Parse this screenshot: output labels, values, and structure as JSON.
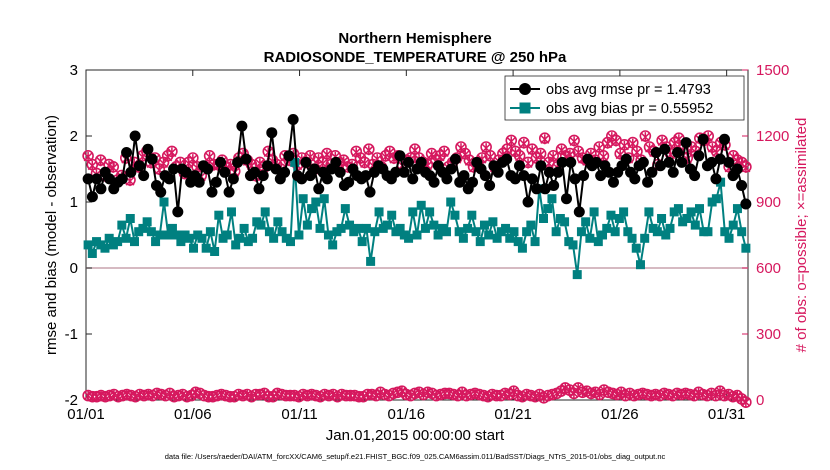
{
  "chart_data": {
    "type": "line",
    "title": "Northern Hemisphere",
    "subtitle": "RADIOSONDE_TEMPERATURE @ 250 hPa",
    "xlabel": "Jan.01,2015 00:00:00 start",
    "ylabel": "rmse and bias (model - observation)",
    "y2label": "# of obs: o=possible; ×=assimilated",
    "footer": "data file: /Users/raeder/DAI/ATM_forcXX/CAM6_setup/f.e21.FHIST_BGC.f09_025.CAM6assim.011/BadSST/Diags_NTrS_2015-01/obs_diag_output.nc",
    "xlim": [
      0,
      31
    ],
    "ylim": [
      -2,
      3
    ],
    "y2lim": [
      0,
      1500
    ],
    "x_ticks": [
      0,
      5,
      10,
      15,
      20,
      25,
      30
    ],
    "x_tick_labels": [
      "01/01",
      "01/06",
      "01/11",
      "01/16",
      "01/21",
      "01/26",
      "01/31"
    ],
    "y_ticks": [
      -2,
      -1,
      0,
      1,
      2,
      3
    ],
    "y_tick_labels": [
      "-2",
      "-1",
      "0",
      "1",
      "2",
      "3"
    ],
    "y2_ticks": [
      0,
      300,
      600,
      900,
      1200,
      1500
    ],
    "y2_tick_labels": [
      "0",
      "300",
      "600",
      "900",
      "1200",
      "1500"
    ],
    "colors": {
      "rmse": "#000000",
      "bias": "#008080",
      "obs": "#d6185e",
      "zero": "#c8a3ad"
    },
    "legend": {
      "position": "top-right",
      "entries": [
        "obs avg rmse pr = 1.4793",
        "obs avg bias pr = 0.55952"
      ]
    },
    "series": [
      {
        "name": "obs avg rmse pr = 1.4793",
        "axis": "left",
        "values": [
          1.35,
          1.08,
          1.35,
          1.2,
          1.45,
          1.35,
          1.2,
          1.3,
          1.35,
          1.75,
          1.45,
          2.0,
          1.55,
          1.4,
          1.8,
          1.65,
          1.25,
          1.15,
          1.4,
          1.35,
          1.5,
          0.85,
          1.5,
          1.45,
          1.3,
          1.4,
          1.3,
          1.55,
          1.5,
          1.15,
          1.3,
          1.6,
          1.45,
          1.15,
          1.35,
          1.6,
          2.15,
          1.65,
          1.4,
          1.45,
          1.2,
          1.4,
          1.55,
          2.05,
          1.5,
          1.35,
          1.45,
          1.7,
          2.25,
          1.4,
          1.35,
          1.6,
          1.4,
          1.5,
          1.2,
          1.45,
          1.35,
          1.5,
          1.6,
          1.45,
          1.25,
          1.3,
          1.5,
          1.4,
          1.35,
          1.4,
          1.15,
          1.45,
          1.55,
          1.5,
          1.4,
          1.35,
          1.45,
          1.7,
          1.45,
          1.6,
          1.35,
          1.5,
          1.6,
          1.45,
          1.4,
          1.3,
          1.55,
          1.45,
          1.35,
          1.5,
          1.65,
          1.3,
          1.4,
          1.2,
          1.3,
          1.6,
          1.5,
          1.4,
          1.25,
          1.55,
          1.45,
          1.6,
          1.65,
          1.4,
          1.35,
          1.55,
          1.4,
          1.0,
          1.35,
          1.2,
          1.55,
          1.2,
          1.45,
          1.25,
          1.45,
          1.6,
          1.05,
          1.6,
          1.35,
          0.85,
          1.4,
          1.65,
          1.55,
          1.6,
          1.4,
          1.55,
          1.45,
          1.3,
          1.45,
          1.55,
          1.65,
          1.45,
          1.35,
          1.55,
          1.6,
          1.3,
          1.45,
          1.75,
          1.55,
          1.8,
          1.6,
          1.45,
          1.75,
          1.6,
          1.9,
          1.5,
          1.4,
          1.7,
          1.95,
          1.55,
          1.6,
          1.35,
          1.65,
          1.95,
          1.6,
          1.4,
          1.5,
          1.25,
          0.97
        ]
      },
      {
        "name": "obs avg bias pr = 0.55952",
        "axis": "left",
        "values": [
          0.35,
          0.22,
          0.4,
          0.35,
          0.3,
          0.45,
          0.35,
          0.4,
          0.65,
          0.45,
          0.75,
          0.4,
          0.55,
          0.6,
          0.7,
          0.55,
          0.4,
          0.5,
          1.0,
          0.5,
          0.6,
          0.5,
          0.4,
          0.5,
          0.45,
          0.3,
          0.5,
          0.45,
          0.3,
          0.55,
          0.25,
          0.8,
          0.45,
          0.5,
          0.85,
          0.35,
          0.45,
          0.6,
          0.4,
          0.45,
          0.7,
          0.65,
          0.85,
          0.55,
          0.45,
          0.7,
          0.55,
          0.45,
          0.4,
          1.6,
          0.5,
          1.05,
          0.65,
          0.9,
          1.0,
          0.6,
          1.05,
          0.5,
          0.35,
          0.55,
          0.6,
          0.9,
          0.65,
          0.55,
          0.6,
          0.4,
          0.6,
          0.1,
          0.55,
          0.85,
          0.6,
          0.65,
          0.8,
          0.55,
          0.6,
          0.5,
          0.45,
          0.85,
          0.5,
          0.95,
          0.6,
          0.85,
          0.65,
          0.5,
          0.6,
          0.55,
          1.0,
          0.8,
          0.55,
          0.45,
          0.6,
          0.8,
          0.55,
          0.4,
          0.65,
          0.5,
          0.7,
          0.45,
          0.55,
          0.6,
          0.45,
          0.55,
          0.4,
          0.3,
          0.55,
          0.65,
          0.4,
          1.2,
          0.75,
          0.9,
          1.05,
          0.55,
          0.75,
          0.7,
          0.4,
          0.35,
          -0.1,
          0.55,
          0.7,
          0.45,
          0.85,
          0.4,
          0.5,
          0.6,
          0.8,
          0.55,
          0.75,
          0.85,
          0.55,
          0.45,
          0.3,
          0.05,
          0.45,
          0.85,
          0.6,
          0.55,
          0.75,
          0.5,
          0.6,
          0.85,
          0.9,
          0.7,
          0.75,
          0.85,
          0.65,
          0.9,
          0.55,
          0.55,
          1.0,
          1.05,
          1.3,
          0.55,
          0.45,
          0.65,
          0.9,
          0.55,
          0.3
        ]
      },
      {
        "name": "# of obs possible",
        "axis": "right",
        "marker": "o",
        "values": [
          1110,
          1070,
          1030,
          1090,
          1020,
          1070,
          1060,
          1000,
          1020,
          1100,
          1000,
          1080,
          1060,
          1110,
          1130,
          1080,
          1100,
          1050,
          1080,
          1110,
          1130,
          1060,
          1080,
          1030,
          1080,
          1100,
          1060,
          1020,
          1060,
          1110,
          1070,
          1070,
          1090,
          1060,
          1070,
          1040,
          1100,
          1120,
          1090,
          1070,
          1020,
          1080,
          1060,
          1130,
          1090,
          1070,
          1050,
          1110,
          1090,
          1120,
          1070,
          1100,
          1080,
          1110,
          1050,
          1100,
          1080,
          1120,
          1070,
          1110,
          1080,
          1090,
          1060,
          1070,
          1130,
          1100,
          1080,
          1140,
          1070,
          1100,
          1060,
          1110,
          1130,
          1100,
          1110,
          1070,
          1090,
          1100,
          1140,
          1100,
          1080,
          1070,
          1120,
          1090,
          1110,
          1130,
          1060,
          1080,
          1100,
          1150,
          1120,
          1090,
          1060,
          1080,
          1100,
          1150,
          1110,
          1060,
          1090,
          1120,
          1140,
          1180,
          1130,
          1110,
          1170,
          1080,
          1140,
          1100,
          1120,
          1190,
          1080,
          1110,
          1060,
          1140,
          1110,
          1120,
          1180,
          1130,
          1100,
          1090,
          1120,
          1090,
          1150,
          1110,
          1170,
          1200,
          1180,
          1120,
          1160,
          1100,
          1170,
          1130,
          1090,
          1200,
          1150,
          1130,
          1070,
          1180,
          1150,
          1120,
          1170,
          1190,
          1140,
          1100,
          1150,
          1130,
          1190,
          1180,
          1200,
          1150,
          1130,
          1170,
          1160,
          1060,
          1110,
          1090,
          1080,
          1060
        ]
      },
      {
        "name": "# of obs assimilated",
        "axis": "right",
        "marker": "x",
        "values": [
          1105,
          1065,
          1025,
          1085,
          1015,
          1065,
          1055,
          995,
          1015,
          1095,
          995,
          1075,
          1055,
          1105,
          1125,
          1075,
          1095,
          1045,
          1075,
          1105,
          1125,
          1055,
          1075,
          1025,
          1075,
          1095,
          1055,
          1015,
          1055,
          1105,
          1065,
          1065,
          1085,
          1055,
          1065,
          1035,
          1095,
          1115,
          1085,
          1065,
          1015,
          1075,
          1055,
          1125,
          1085,
          1065,
          1045,
          1105,
          1085,
          1115,
          1065,
          1095,
          1075,
          1105,
          1045,
          1095,
          1075,
          1115,
          1065,
          1105,
          1075,
          1085,
          1055,
          1065,
          1125,
          1095,
          1075,
          1135,
          1065,
          1095,
          1055,
          1105,
          1125,
          1095,
          1105,
          1065,
          1085,
          1095,
          1135,
          1095,
          1075,
          1065,
          1115,
          1085,
          1105,
          1125,
          1055,
          1075,
          1095,
          1145,
          1115,
          1085,
          1055,
          1075,
          1095,
          1145,
          1105,
          1055,
          1085,
          1115,
          1135,
          1175,
          1125,
          1105,
          1165,
          1075,
          1135,
          1095,
          1115,
          1185,
          1075,
          1105,
          1055,
          1135,
          1105,
          1115,
          1175,
          1125,
          1095,
          1085,
          1115,
          1085,
          1145,
          1105,
          1165,
          1195,
          1175,
          1115,
          1155,
          1095,
          1165,
          1125,
          1085,
          1195,
          1145,
          1125,
          1065,
          1175,
          1145,
          1115,
          1165,
          1185,
          1135,
          1095,
          1145,
          1125,
          1185,
          1175,
          1195,
          1145,
          1125,
          1165,
          1155,
          1055,
          1105,
          1085,
          1075,
          1055
        ]
      },
      {
        "name": "# of obs possible (lower)",
        "axis": "right",
        "marker": "o",
        "values": [
          20,
          15,
          15,
          20,
          15,
          20,
          25,
          15,
          20,
          25,
          20,
          15,
          25,
          20,
          25,
          20,
          30,
          25,
          20,
          30,
          15,
          20,
          25,
          15,
          20,
          35,
          30,
          20,
          15,
          15,
          20,
          25,
          20,
          15,
          15,
          25,
          20,
          25,
          15,
          25,
          25,
          30,
          15,
          15,
          30,
          25,
          20,
          20,
          20,
          15,
          25,
          20,
          25,
          20,
          15,
          25,
          20,
          25,
          15,
          25,
          20,
          20,
          20,
          15,
          15,
          25,
          25,
          20,
          35,
          25,
          20,
          30,
          35,
          40,
          25,
          20,
          30,
          35,
          25,
          35,
          30,
          20,
          25,
          30,
          30,
          25,
          20,
          35,
          20,
          25,
          30,
          25,
          20,
          15,
          25,
          20,
          20,
          30,
          25,
          40,
          20,
          15,
          25,
          20,
          15,
          25,
          10,
          20,
          25,
          30,
          40,
          55,
          45,
          30,
          55,
          35,
          40,
          30,
          35,
          25,
          45,
          35,
          30,
          25,
          35,
          20,
          30,
          20,
          25,
          30,
          25,
          20,
          25,
          20,
          30,
          25,
          20,
          30,
          25,
          30,
          25,
          20,
          35,
          25,
          20,
          30,
          20,
          40,
          20,
          25,
          15,
          20,
          5,
          -10
        ]
      },
      {
        "name": "# of obs assimilated (lower)",
        "axis": "right",
        "marker": "x",
        "values": [
          20,
          15,
          15,
          20,
          15,
          20,
          25,
          15,
          20,
          25,
          20,
          15,
          25,
          20,
          25,
          20,
          30,
          25,
          20,
          30,
          15,
          20,
          25,
          15,
          20,
          35,
          30,
          20,
          15,
          15,
          20,
          25,
          20,
          15,
          15,
          25,
          20,
          25,
          15,
          25,
          25,
          30,
          15,
          15,
          30,
          25,
          20,
          20,
          20,
          15,
          25,
          20,
          25,
          20,
          15,
          25,
          20,
          25,
          15,
          25,
          20,
          20,
          20,
          15,
          15,
          25,
          25,
          20,
          35,
          25,
          20,
          30,
          35,
          40,
          25,
          20,
          30,
          35,
          25,
          35,
          30,
          20,
          25,
          30,
          30,
          25,
          20,
          35,
          20,
          25,
          30,
          25,
          20,
          15,
          25,
          20,
          20,
          30,
          25,
          40,
          20,
          15,
          25,
          20,
          15,
          25,
          10,
          20,
          25,
          30,
          40,
          55,
          45,
          30,
          55,
          35,
          40,
          30,
          35,
          25,
          45,
          35,
          30,
          25,
          35,
          20,
          30,
          20,
          25,
          30,
          25,
          20,
          25,
          20,
          30,
          25,
          20,
          30,
          25,
          30,
          25,
          20,
          35,
          25,
          20,
          30,
          20,
          40,
          20,
          25,
          15,
          20,
          5,
          -10
        ]
      }
    ]
  }
}
